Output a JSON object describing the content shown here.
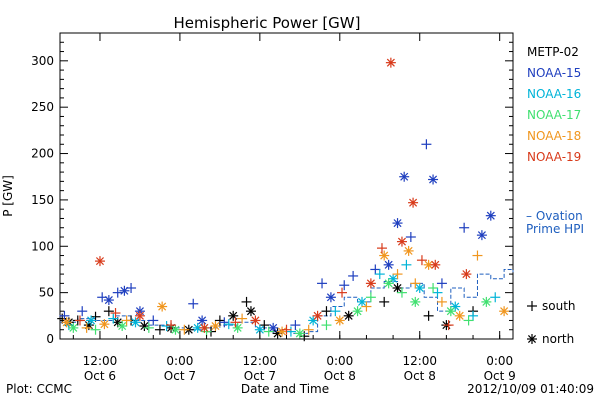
{
  "chart_data": {
    "type": "scatter",
    "title": "Hemispheric Power [GW]",
    "xlabel": "Date and Time",
    "ylabel": "P [GW]",
    "x_unit": "hours",
    "xlim": [
      3.0,
      105.0
    ],
    "ylim": [
      0,
      330
    ],
    "yticks": [
      0,
      50,
      100,
      150,
      200,
      250,
      300
    ],
    "xticks": [
      {
        "x": 12,
        "label1": "12:00",
        "label2": "Oct 6"
      },
      {
        "x": 30,
        "label1": "0:00",
        "label2": "Oct 7"
      },
      {
        "x": 48,
        "label1": "12:00",
        "label2": "Oct 7"
      },
      {
        "x": 66,
        "label1": "0:00",
        "label2": "Oct 8"
      },
      {
        "x": 84,
        "label1": "12:00",
        "label2": "Oct 8"
      },
      {
        "x": 102,
        "label1": "0:00",
        "label2": "Oct 9"
      }
    ],
    "legend_position": "right",
    "marker_legend": [
      {
        "label": "south",
        "marker": "+"
      },
      {
        "label": "north",
        "marker": "*"
      }
    ],
    "series": [
      {
        "name": "METP-02",
        "color": "#000000",
        "points": [
          {
            "x": 3.5,
            "y": 22,
            "m": "+"
          },
          {
            "x": 5,
            "y": 18,
            "m": "*"
          },
          {
            "x": 7,
            "y": 20,
            "m": "+"
          },
          {
            "x": 9.5,
            "y": 15,
            "m": "*"
          },
          {
            "x": 11,
            "y": 24,
            "m": "+"
          },
          {
            "x": 14,
            "y": 30,
            "m": "+"
          },
          {
            "x": 16,
            "y": 18,
            "m": "*"
          },
          {
            "x": 19,
            "y": 20,
            "m": "+"
          },
          {
            "x": 22,
            "y": 14,
            "m": "*"
          },
          {
            "x": 25.5,
            "y": 10,
            "m": "+"
          },
          {
            "x": 28,
            "y": 12,
            "m": "*"
          },
          {
            "x": 32,
            "y": 10,
            "m": "*"
          },
          {
            "x": 37,
            "y": 8,
            "m": "+"
          },
          {
            "x": 39,
            "y": 20,
            "m": "+"
          },
          {
            "x": 42,
            "y": 25,
            "m": "*"
          },
          {
            "x": 45,
            "y": 40,
            "m": "+"
          },
          {
            "x": 46,
            "y": 30,
            "m": "*"
          },
          {
            "x": 49,
            "y": 15,
            "m": "+"
          },
          {
            "x": 52,
            "y": 6,
            "m": "*"
          },
          {
            "x": 58,
            "y": 3,
            "m": "+"
          },
          {
            "x": 63,
            "y": 30,
            "m": "+"
          },
          {
            "x": 68,
            "y": 25,
            "m": "*"
          },
          {
            "x": 76,
            "y": 40,
            "m": "+"
          },
          {
            "x": 79,
            "y": 55,
            "m": "*"
          },
          {
            "x": 86,
            "y": 25,
            "m": "+"
          },
          {
            "x": 90,
            "y": 15,
            "m": "*"
          },
          {
            "x": 96,
            "y": 30,
            "m": "+"
          }
        ]
      },
      {
        "name": "NOAA-15",
        "color": "#1f3fbf",
        "points": [
          {
            "x": 4,
            "y": 25,
            "m": "+"
          },
          {
            "x": 8,
            "y": 30,
            "m": "+"
          },
          {
            "x": 12.5,
            "y": 45,
            "m": "+"
          },
          {
            "x": 14,
            "y": 42,
            "m": "*"
          },
          {
            "x": 16,
            "y": 50,
            "m": "+"
          },
          {
            "x": 17.5,
            "y": 52,
            "m": "*"
          },
          {
            "x": 19,
            "y": 55,
            "m": "+"
          },
          {
            "x": 21,
            "y": 30,
            "m": "*"
          },
          {
            "x": 24,
            "y": 20,
            "m": "+"
          },
          {
            "x": 33,
            "y": 38,
            "m": "+"
          },
          {
            "x": 35,
            "y": 20,
            "m": "*"
          },
          {
            "x": 40,
            "y": 18,
            "m": "+"
          },
          {
            "x": 51,
            "y": 12,
            "m": "*"
          },
          {
            "x": 56,
            "y": 15,
            "m": "+"
          },
          {
            "x": 62,
            "y": 60,
            "m": "+"
          },
          {
            "x": 64,
            "y": 45,
            "m": "*"
          },
          {
            "x": 67,
            "y": 58,
            "m": "+"
          },
          {
            "x": 69,
            "y": 68,
            "m": "+"
          },
          {
            "x": 74,
            "y": 75,
            "m": "+"
          },
          {
            "x": 77,
            "y": 80,
            "m": "*"
          },
          {
            "x": 79,
            "y": 125,
            "m": "*"
          },
          {
            "x": 80.5,
            "y": 175,
            "m": "*"
          },
          {
            "x": 82,
            "y": 110,
            "m": "+"
          },
          {
            "x": 85.5,
            "y": 210,
            "m": "+"
          },
          {
            "x": 87,
            "y": 172,
            "m": "*"
          },
          {
            "x": 89,
            "y": 60,
            "m": "+"
          },
          {
            "x": 94,
            "y": 120,
            "m": "+"
          },
          {
            "x": 98,
            "y": 112,
            "m": "*"
          },
          {
            "x": 100,
            "y": 133,
            "m": "*"
          }
        ]
      },
      {
        "name": "NOAA-16",
        "color": "#00b4d8",
        "points": [
          {
            "x": 5,
            "y": 15,
            "m": "+"
          },
          {
            "x": 10,
            "y": 20,
            "m": "*"
          },
          {
            "x": 15,
            "y": 22,
            "m": "+"
          },
          {
            "x": 20,
            "y": 18,
            "m": "*"
          },
          {
            "x": 27,
            "y": 14,
            "m": "+"
          },
          {
            "x": 34,
            "y": 12,
            "m": "*"
          },
          {
            "x": 41,
            "y": 16,
            "m": "+"
          },
          {
            "x": 48,
            "y": 10,
            "m": "*"
          },
          {
            "x": 55,
            "y": 8,
            "m": "+"
          },
          {
            "x": 60,
            "y": 20,
            "m": "*"
          },
          {
            "x": 65,
            "y": 30,
            "m": "+"
          },
          {
            "x": 71,
            "y": 40,
            "m": "*"
          },
          {
            "x": 75,
            "y": 70,
            "m": "+"
          },
          {
            "x": 78,
            "y": 65,
            "m": "*"
          },
          {
            "x": 81,
            "y": 80,
            "m": "+"
          },
          {
            "x": 84,
            "y": 55,
            "m": "*"
          },
          {
            "x": 88,
            "y": 50,
            "m": "+"
          },
          {
            "x": 92,
            "y": 35,
            "m": "*"
          },
          {
            "x": 96,
            "y": 25,
            "m": "+"
          },
          {
            "x": 101,
            "y": 45,
            "m": "+"
          }
        ]
      },
      {
        "name": "NOAA-17",
        "color": "#40e070",
        "points": [
          {
            "x": 6,
            "y": 12,
            "m": "*"
          },
          {
            "x": 11,
            "y": 10,
            "m": "+"
          },
          {
            "x": 17,
            "y": 14,
            "m": "*"
          },
          {
            "x": 23,
            "y": 12,
            "m": "+"
          },
          {
            "x": 29,
            "y": 10,
            "m": "*"
          },
          {
            "x": 36,
            "y": 8,
            "m": "+"
          },
          {
            "x": 43,
            "y": 12,
            "m": "*"
          },
          {
            "x": 50,
            "y": 8,
            "m": "+"
          },
          {
            "x": 57,
            "y": 6,
            "m": "*"
          },
          {
            "x": 63,
            "y": 15,
            "m": "+"
          },
          {
            "x": 70,
            "y": 30,
            "m": "*"
          },
          {
            "x": 73,
            "y": 45,
            "m": "+"
          },
          {
            "x": 77,
            "y": 60,
            "m": "*"
          },
          {
            "x": 80,
            "y": 50,
            "m": "+"
          },
          {
            "x": 83,
            "y": 40,
            "m": "*"
          },
          {
            "x": 87,
            "y": 55,
            "m": "+"
          },
          {
            "x": 91,
            "y": 30,
            "m": "*"
          },
          {
            "x": 95,
            "y": 20,
            "m": "+"
          },
          {
            "x": 99,
            "y": 40,
            "m": "*"
          }
        ]
      },
      {
        "name": "NOAA-18",
        "color": "#f0961e",
        "points": [
          {
            "x": 4.5,
            "y": 18,
            "m": "*"
          },
          {
            "x": 9,
            "y": 12,
            "m": "+"
          },
          {
            "x": 13,
            "y": 16,
            "m": "*"
          },
          {
            "x": 18,
            "y": 20,
            "m": "+"
          },
          {
            "x": 26,
            "y": 35,
            "m": "*"
          },
          {
            "x": 31,
            "y": 10,
            "m": "+"
          },
          {
            "x": 38,
            "y": 14,
            "m": "*"
          },
          {
            "x": 44,
            "y": 22,
            "m": "+"
          },
          {
            "x": 53,
            "y": 8,
            "m": "*"
          },
          {
            "x": 59,
            "y": 10,
            "m": "+"
          },
          {
            "x": 66,
            "y": 20,
            "m": "*"
          },
          {
            "x": 72,
            "y": 35,
            "m": "+"
          },
          {
            "x": 76,
            "y": 90,
            "m": "*"
          },
          {
            "x": 79,
            "y": 70,
            "m": "+"
          },
          {
            "x": 81.5,
            "y": 95,
            "m": "*"
          },
          {
            "x": 83,
            "y": 60,
            "m": "+"
          },
          {
            "x": 86,
            "y": 80,
            "m": "*"
          },
          {
            "x": 89,
            "y": 40,
            "m": "+"
          },
          {
            "x": 93,
            "y": 25,
            "m": "*"
          },
          {
            "x": 97,
            "y": 90,
            "m": "+"
          },
          {
            "x": 103,
            "y": 30,
            "m": "*"
          }
        ]
      },
      {
        "name": "NOAA-19",
        "color": "#d83a1a",
        "points": [
          {
            "x": 7.5,
            "y": 20,
            "m": "+"
          },
          {
            "x": 12,
            "y": 84,
            "m": "*"
          },
          {
            "x": 15.5,
            "y": 28,
            "m": "+"
          },
          {
            "x": 21,
            "y": 25,
            "m": "*"
          },
          {
            "x": 28,
            "y": 15,
            "m": "+"
          },
          {
            "x": 35.5,
            "y": 12,
            "m": "*"
          },
          {
            "x": 42.5,
            "y": 18,
            "m": "+"
          },
          {
            "x": 47,
            "y": 20,
            "m": "*"
          },
          {
            "x": 54,
            "y": 10,
            "m": "+"
          },
          {
            "x": 61,
            "y": 25,
            "m": "*"
          },
          {
            "x": 66.5,
            "y": 50,
            "m": "+"
          },
          {
            "x": 73,
            "y": 60,
            "m": "*"
          },
          {
            "x": 75.5,
            "y": 98,
            "m": "+"
          },
          {
            "x": 77.5,
            "y": 298,
            "m": "*"
          },
          {
            "x": 80,
            "y": 105,
            "m": "*"
          },
          {
            "x": 82.5,
            "y": 147,
            "m": "*"
          },
          {
            "x": 84.5,
            "y": 85,
            "m": "+"
          },
          {
            "x": 87.5,
            "y": 80,
            "m": "*"
          },
          {
            "x": 90.5,
            "y": 15,
            "m": "+"
          },
          {
            "x": 94.5,
            "y": 70,
            "m": "*"
          }
        ]
      }
    ],
    "ovation": {
      "name": "Ovation Prime HPI",
      "label_line1": "– Ovation",
      "label_line2": "Prime HPI",
      "color": "#1f5fbf",
      "points": [
        {
          "x": 3,
          "y": 18
        },
        {
          "x": 7,
          "y": 22
        },
        {
          "x": 11,
          "y": 20
        },
        {
          "x": 15,
          "y": 25
        },
        {
          "x": 19,
          "y": 20
        },
        {
          "x": 23,
          "y": 15
        },
        {
          "x": 27,
          "y": 12
        },
        {
          "x": 31,
          "y": 10
        },
        {
          "x": 35,
          "y": 12
        },
        {
          "x": 39,
          "y": 15
        },
        {
          "x": 43,
          "y": 18
        },
        {
          "x": 47,
          "y": 12
        },
        {
          "x": 51,
          "y": 8
        },
        {
          "x": 55,
          "y": 6
        },
        {
          "x": 59,
          "y": 8
        },
        {
          "x": 61,
          "y": 25
        },
        {
          "x": 64,
          "y": 35
        },
        {
          "x": 67,
          "y": 45
        },
        {
          "x": 70,
          "y": 40
        },
        {
          "x": 73,
          "y": 55
        },
        {
          "x": 76,
          "y": 62
        },
        {
          "x": 79,
          "y": 55
        },
        {
          "x": 82,
          "y": 60
        },
        {
          "x": 85,
          "y": 45
        },
        {
          "x": 88,
          "y": 30
        },
        {
          "x": 91,
          "y": 55
        },
        {
          "x": 94,
          "y": 45
        },
        {
          "x": 97,
          "y": 70
        },
        {
          "x": 100,
          "y": 65
        },
        {
          "x": 103,
          "y": 75
        },
        {
          "x": 105,
          "y": 72
        }
      ]
    }
  },
  "footer": {
    "plot_credit": "Plot: CCMC",
    "timestamp": "2012/10/09 01:40:09"
  },
  "colors": {
    "axis": "#000000",
    "background": "#ffffff"
  }
}
